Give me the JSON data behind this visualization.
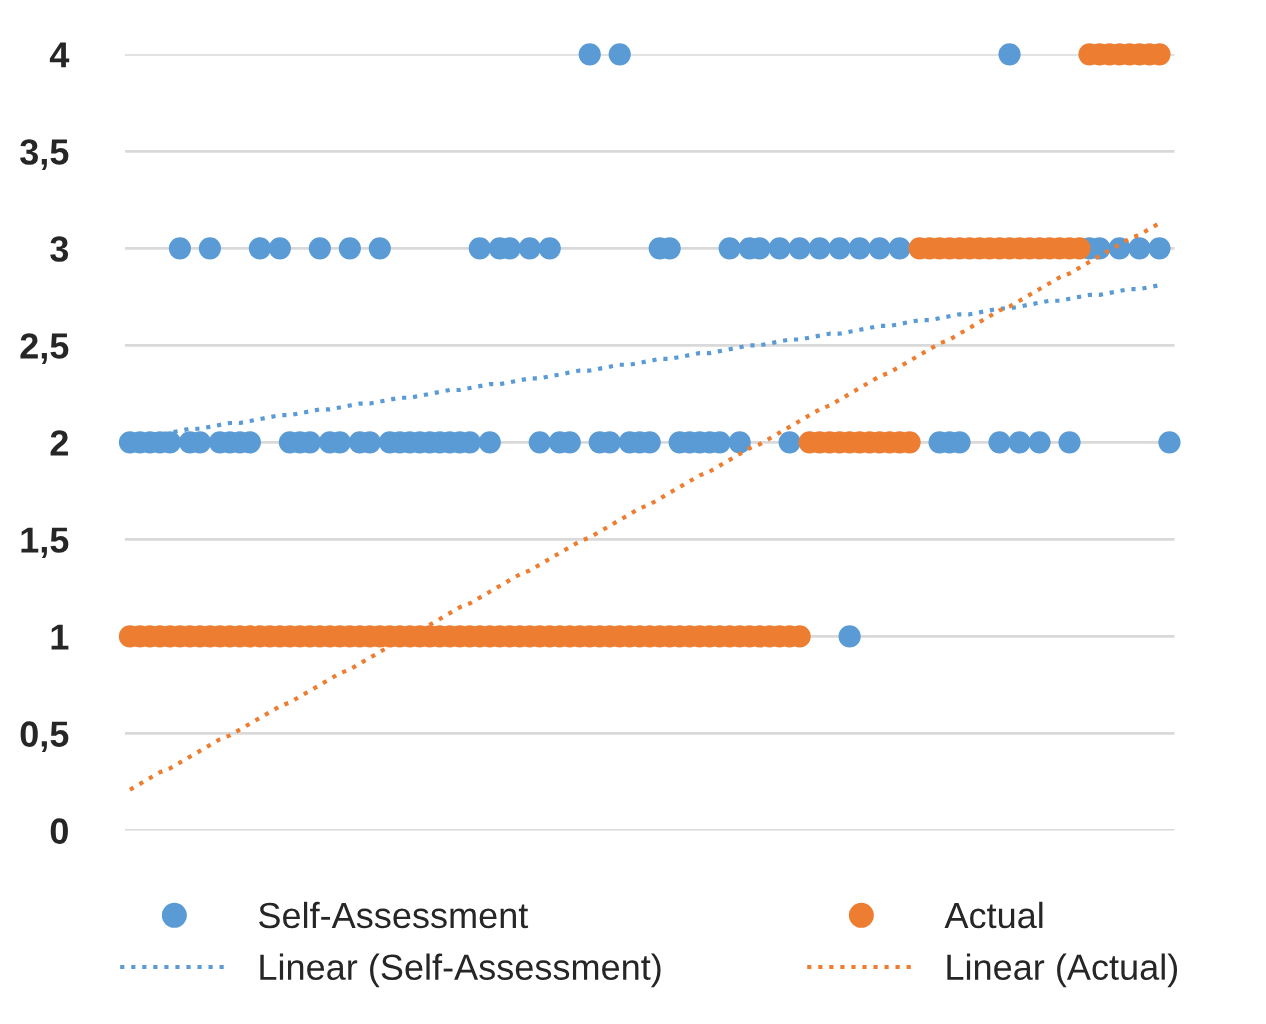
{
  "chart_data": {
    "type": "scatter",
    "categories": [
      null,
      null,
      null,
      null,
      null,
      null,
      null,
      null,
      null,
      null,
      null,
      null,
      null,
      null,
      null,
      null,
      null,
      null,
      null,
      null,
      null,
      null,
      null,
      null,
      null,
      null,
      null,
      null,
      null,
      null,
      null,
      null,
      null,
      null,
      null,
      null,
      null,
      null,
      null,
      null,
      null,
      null,
      null,
      null,
      null,
      null,
      null,
      null,
      null,
      null,
      null,
      null,
      null,
      null,
      null,
      null,
      null,
      null,
      null,
      null,
      null,
      null,
      null,
      null,
      null,
      null,
      null,
      null,
      null,
      null,
      null,
      null,
      null,
      null,
      null,
      null,
      null,
      null,
      null,
      null,
      null,
      null,
      null,
      null,
      null,
      null,
      null,
      null,
      null,
      null,
      null,
      null,
      null,
      null,
      null,
      null,
      null,
      null,
      null,
      null,
      null,
      null,
      null,
      null,
      null
    ],
    "series": [
      {
        "name": "Self-Assessment",
        "color": "#5b9bd5",
        "values": [
          2,
          2,
          2,
          2,
          2,
          3,
          2,
          2,
          3,
          2,
          2,
          2,
          2,
          3,
          null,
          3,
          2,
          2,
          2,
          3,
          2,
          2,
          3,
          2,
          2,
          3,
          2,
          2,
          2,
          2,
          2,
          2,
          2,
          2,
          2,
          3,
          2,
          3,
          3,
          null,
          3,
          2,
          3,
          2,
          2,
          null,
          4,
          2,
          2,
          4,
          2,
          2,
          2,
          3,
          3,
          2,
          2,
          2,
          2,
          2,
          3,
          2,
          3,
          3,
          null,
          3,
          2,
          3,
          null,
          3,
          null,
          3,
          1,
          3,
          null,
          3,
          null,
          3,
          null,
          null,
          null,
          2,
          2,
          2,
          null,
          null,
          null,
          2,
          4,
          2,
          null,
          2,
          null,
          null,
          2,
          null,
          3,
          3,
          null,
          3,
          null,
          3,
          null,
          3,
          2
        ]
      },
      {
        "name": "Actual",
        "color": "#ed7d31",
        "values": [
          1,
          1,
          1,
          1,
          1,
          1,
          1,
          1,
          1,
          1,
          1,
          1,
          1,
          1,
          1,
          1,
          1,
          1,
          1,
          1,
          1,
          1,
          1,
          1,
          1,
          1,
          1,
          1,
          1,
          1,
          1,
          1,
          1,
          1,
          1,
          1,
          1,
          1,
          1,
          1,
          1,
          1,
          1,
          1,
          1,
          1,
          1,
          1,
          1,
          1,
          1,
          1,
          1,
          1,
          1,
          1,
          1,
          1,
          1,
          1,
          1,
          1,
          1,
          1,
          1,
          1,
          1,
          1,
          2,
          2,
          2,
          2,
          2,
          2,
          2,
          2,
          2,
          2,
          2,
          3,
          3,
          3,
          3,
          3,
          3,
          3,
          3,
          3,
          3,
          3,
          3,
          3,
          3,
          3,
          3,
          3,
          4,
          4,
          4,
          4,
          4,
          4,
          4,
          4,
          null
        ]
      },
      {
        "name": "Linear (Self-Assessment)",
        "type": "line",
        "line_style": "dotted",
        "marker": "none",
        "color": "#5b9bd5",
        "values": [
          2.02,
          2.03,
          2.04,
          2.04,
          2.05,
          2.06,
          2.07,
          2.07,
          2.08,
          2.09,
          2.1,
          2.1,
          2.11,
          2.12,
          2.13,
          2.14,
          2.14,
          2.15,
          2.16,
          2.17,
          2.17,
          2.18,
          2.19,
          2.2,
          2.2,
          2.21,
          2.22,
          2.23,
          2.23,
          2.24,
          2.25,
          2.26,
          2.27,
          2.27,
          2.28,
          2.29,
          2.3,
          2.3,
          2.31,
          2.32,
          2.33,
          2.33,
          2.34,
          2.35,
          2.36,
          2.37,
          2.37,
          2.38,
          2.39,
          2.4,
          2.4,
          2.41,
          2.42,
          2.43,
          2.43,
          2.44,
          2.45,
          2.46,
          2.46,
          2.47,
          2.48,
          2.49,
          2.5,
          2.5,
          2.51,
          2.52,
          2.53,
          2.53,
          2.54,
          2.55,
          2.56,
          2.56,
          2.57,
          2.58,
          2.59,
          2.6,
          2.6,
          2.61,
          2.62,
          2.63,
          2.63,
          2.64,
          2.65,
          2.66,
          2.66,
          2.67,
          2.68,
          2.69,
          2.69,
          2.7,
          2.71,
          2.72,
          2.73,
          2.73,
          2.74,
          2.75,
          2.76,
          2.76,
          2.77,
          2.78,
          2.79,
          2.79,
          2.8,
          2.81,
          null
        ]
      },
      {
        "name": "Linear (Actual)",
        "type": "line",
        "line_style": "dotted",
        "marker": "none",
        "color": "#ed7d31",
        "values": [
          0.21,
          0.24,
          0.27,
          0.3,
          0.32,
          0.35,
          0.38,
          0.41,
          0.44,
          0.47,
          0.49,
          0.52,
          0.55,
          0.58,
          0.61,
          0.64,
          0.66,
          0.69,
          0.72,
          0.75,
          0.78,
          0.81,
          0.83,
          0.86,
          0.89,
          0.92,
          0.95,
          0.98,
          1.0,
          1.03,
          1.06,
          1.09,
          1.12,
          1.15,
          1.17,
          1.2,
          1.23,
          1.26,
          1.29,
          1.32,
          1.34,
          1.37,
          1.4,
          1.43,
          1.46,
          1.49,
          1.51,
          1.54,
          1.57,
          1.6,
          1.63,
          1.66,
          1.68,
          1.71,
          1.74,
          1.77,
          1.8,
          1.83,
          1.85,
          1.88,
          1.91,
          1.94,
          1.97,
          1.99,
          2.02,
          2.05,
          2.08,
          2.11,
          2.14,
          2.17,
          2.19,
          2.22,
          2.25,
          2.28,
          2.31,
          2.34,
          2.36,
          2.39,
          2.42,
          2.45,
          2.48,
          2.51,
          2.53,
          2.56,
          2.59,
          2.62,
          2.65,
          2.68,
          2.7,
          2.73,
          2.76,
          2.79,
          2.82,
          2.85,
          2.87,
          2.9,
          2.93,
          2.96,
          2.99,
          3.02,
          3.05,
          3.07,
          3.1,
          3.13,
          null
        ]
      }
    ],
    "marker": "circle",
    "ylim": [
      0,
      4
    ],
    "yticks": [
      0,
      {
        "value": 0.5,
        "label": "0,5"
      },
      1,
      {
        "value": 1.5,
        "label": "1,5"
      },
      2,
      {
        "value": 2.5,
        "label": "2,5"
      },
      3,
      {
        "value": 3.5,
        "label": "3,5"
      },
      4
    ],
    "grid": "y",
    "legend": "bottom",
    "tick_labels": "y"
  }
}
